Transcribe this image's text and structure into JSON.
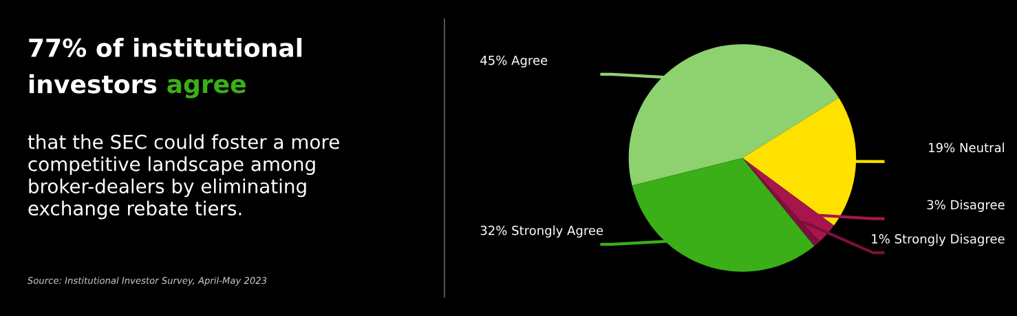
{
  "chart_data": {
    "type": "pie",
    "title": "77% of institutional\ninvestors agree",
    "subtitle": "that the SEC could foster a more\ncompetitive landscape among\nbroker-dealers by eliminating\nexchange rebate tiers.",
    "annotations": [
      "Source: Institutional Investor Survey, April-May 2023"
    ],
    "categories": [
      "Agree",
      "Neutral",
      "Disagree",
      "Strongly Disagree",
      "Strongly Agree"
    ],
    "values": [
      45,
      19,
      3,
      1,
      32
    ],
    "value_labels": [
      "45%",
      "19%",
      "3%",
      "1%",
      "32%"
    ],
    "colors": [
      "#8ed270",
      "#ffe100",
      "#a8154c",
      "#7d0f3e",
      "#3aaf18"
    ]
  }
}
